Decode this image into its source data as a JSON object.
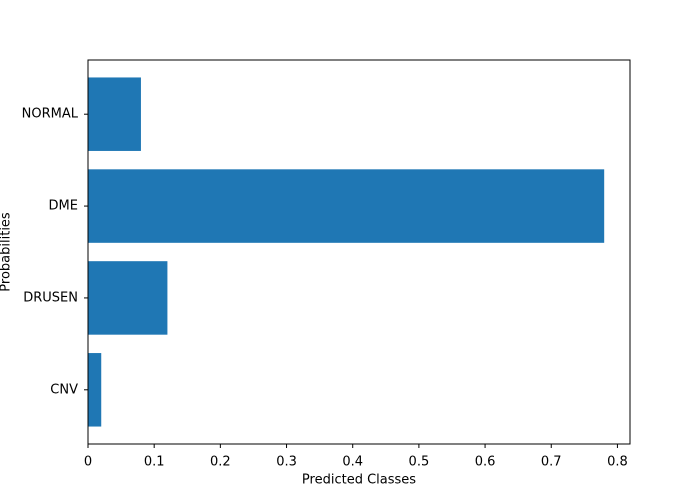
{
  "chart_data": {
    "type": "barh",
    "xlabel": "Predicted Classes",
    "ylabel": "Probabilities",
    "categories": [
      "CNV",
      "DRUSEN",
      "DME",
      "NORMAL"
    ],
    "values": [
      0.02,
      0.12,
      0.78,
      0.08
    ],
    "color": "#1f77b4",
    "xlim": [
      0,
      0.819
    ],
    "xticks": [
      0,
      0.1,
      0.2,
      0.3,
      0.4,
      0.5,
      0.6,
      0.7,
      0.8
    ],
    "grid": false
  }
}
